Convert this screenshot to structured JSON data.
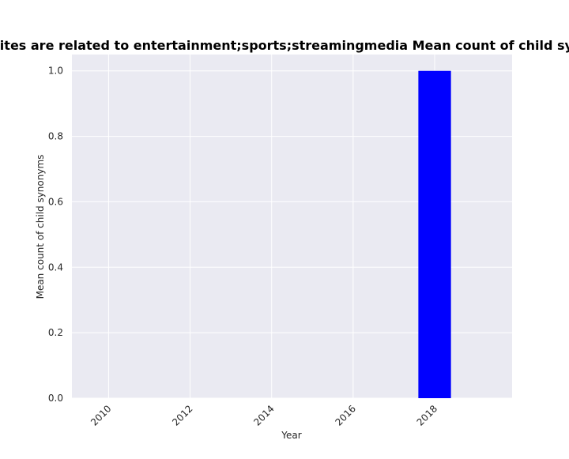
{
  "chart_data": {
    "type": "bar",
    "title": "Share of first-party websites are related to entertainment;sports;streamingmedia Mean count of child synonyms in privacy policies",
    "xlabel": "Year",
    "ylabel": "Mean count of child synonyms",
    "x": [
      2018
    ],
    "values": [
      1.0
    ],
    "xlim": [
      2009.1,
      2019.9
    ],
    "ylim": [
      0.0,
      1.05
    ],
    "xticks": [
      2010,
      2012,
      2014,
      2016,
      2018
    ],
    "yticks": [
      "0.0",
      "0.2",
      "0.4",
      "0.6",
      "0.8",
      "1.0"
    ],
    "bar_width_years": 0.8,
    "grid": true,
    "colors": {
      "bar": "#0000ff",
      "plot_background": "#eaeaf2",
      "grid": "#ffffff"
    }
  }
}
